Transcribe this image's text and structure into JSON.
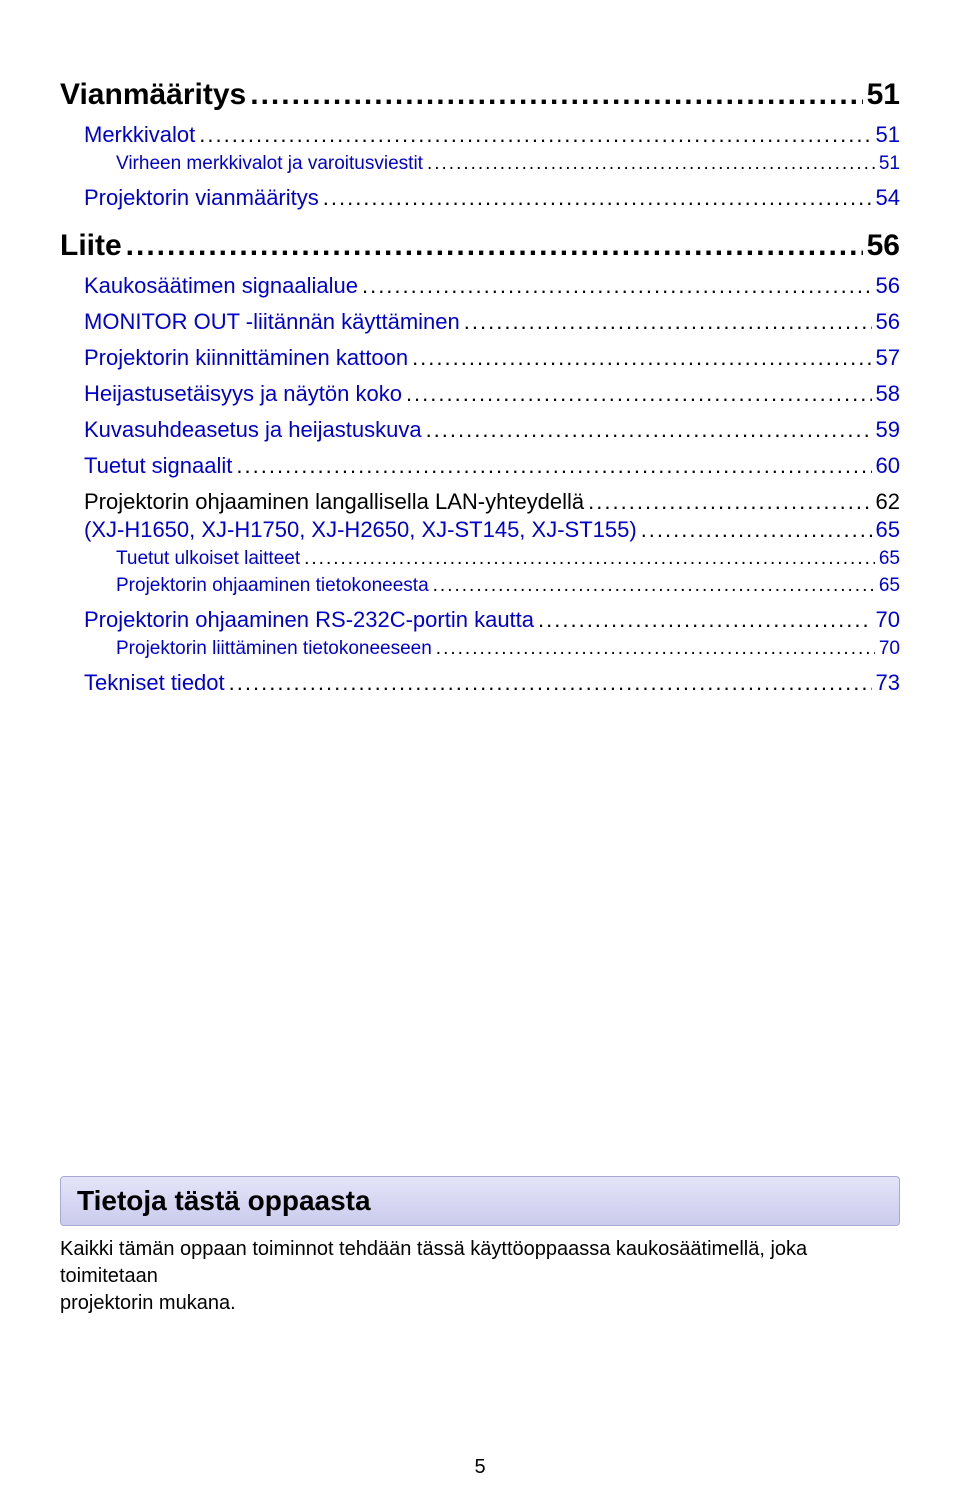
{
  "toc": [
    {
      "level": 1,
      "label": "Vianmääritys",
      "page": "51"
    },
    {
      "level": 2,
      "label": "Merkkivalot",
      "page": "51"
    },
    {
      "level": 3,
      "label": "Virheen merkkivalot ja varoitusviestit",
      "page": "51"
    },
    {
      "level": 2,
      "label": "Projektorin vianmääritys",
      "page": "54"
    },
    {
      "level": 1,
      "label": "Liite",
      "page": "56"
    },
    {
      "level": 2,
      "label": "Kaukosäätimen signaalialue",
      "page": "56"
    },
    {
      "level": 2,
      "label": "MONITOR OUT -liitännän käyttäminen",
      "page": "56"
    },
    {
      "level": 2,
      "label": "Projektorin kiinnittäminen kattoon",
      "page": "57"
    },
    {
      "level": 2,
      "label": "Heijastusetäisyys ja näytön koko",
      "page": "58"
    },
    {
      "level": 2,
      "label": "Kuvasuhdeasetus ja heijastuskuva",
      "page": "59"
    },
    {
      "level": 2,
      "label": "Tuetut signaalit",
      "page": "60"
    },
    {
      "level": "2black",
      "label": "Projektorin ohjaaminen langallisella LAN-yhteydellä",
      "page": "62"
    },
    {
      "level": "2cont",
      "label": "(XJ-H1650, XJ-H1750, XJ-H2650, XJ-ST145, XJ-ST155)",
      "page": "65"
    },
    {
      "level": 3,
      "label": "Tuetut ulkoiset laitteet",
      "page": "65"
    },
    {
      "level": 3,
      "label": "Projektorin ohjaaminen tietokoneesta",
      "page": "65"
    },
    {
      "level": 2,
      "label": "Projektorin ohjaaminen RS-232C-portin kautta",
      "page": "70"
    },
    {
      "level": 3,
      "label": "Projektorin liittäminen tietokoneeseen",
      "page": "70"
    },
    {
      "level": 2,
      "label": "Tekniset tiedot",
      "page": "73"
    }
  ],
  "section_title": "Tietoja tästä oppaasta",
  "section_body_line1": "Kaikki tämän oppaan toiminnot tehdään tässä käyttöoppaassa kaukosäätimellä, joka toimitetaan",
  "section_body_line2": "projektorin mukana.",
  "page_number": "5",
  "colors": {
    "link": "#0000cc",
    "text": "#000000",
    "banner_top": "#e4e4f8",
    "banner_bottom": "#cbcbee",
    "banner_border": "#a9a9d8"
  },
  "dots": "...................................................................................................................................................................................."
}
